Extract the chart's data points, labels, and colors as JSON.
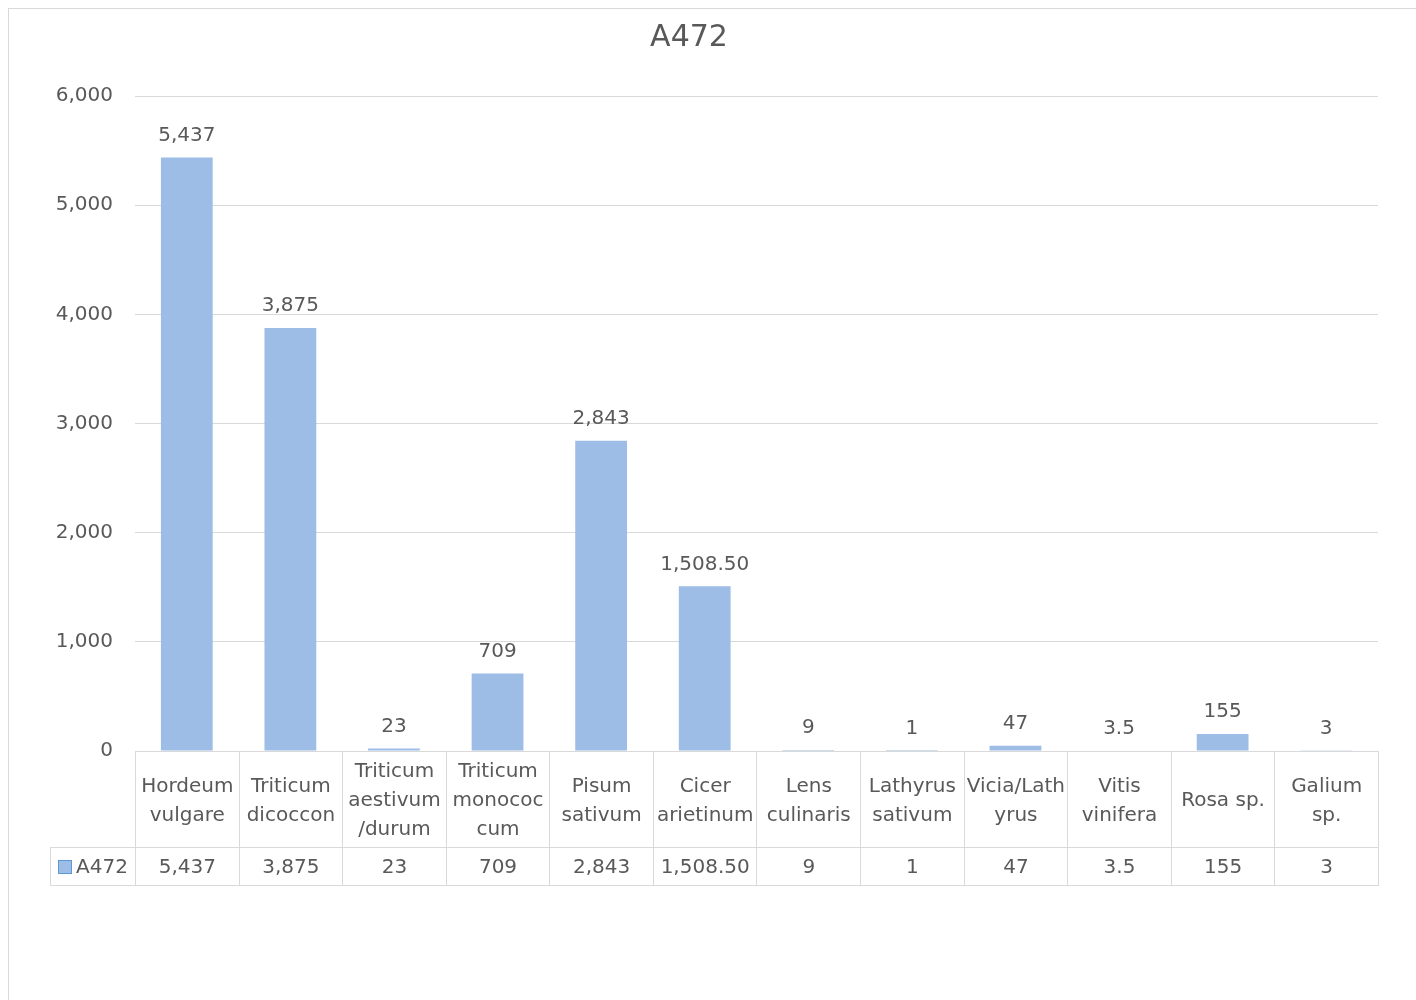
{
  "chart_data": {
    "type": "bar",
    "title": "A472",
    "categories": [
      "Hordeum vulgare",
      "Triticum dicoccon",
      "Triticum aestivum/durum",
      "Triticum monococcum",
      "Pisum sativum",
      "Cicer arietinum",
      "Lens culinaris",
      "Lathyrus sativum",
      "Vicia/Lathyrus",
      "Vitis vinifera",
      "Rosa sp.",
      "Galium sp."
    ],
    "series": [
      {
        "name": "A472",
        "color": "#9dbde6",
        "values": [
          5437,
          3875,
          23,
          709,
          2843,
          1508.5,
          9,
          1,
          47,
          3.5,
          155,
          3
        ],
        "value_labels": [
          "5,437",
          "3,875",
          "23",
          "709",
          "2,843",
          "1,508.50",
          "9",
          "1",
          "47",
          "3.5",
          "155",
          "3"
        ]
      }
    ],
    "ylim": [
      0,
      6000
    ],
    "yticks": [
      {
        "value": 0,
        "label": "0"
      },
      {
        "value": 1000,
        "label": "1,000"
      },
      {
        "value": 2000,
        "label": "2,000"
      },
      {
        "value": 3000,
        "label": "3,000"
      },
      {
        "value": 4000,
        "label": "4,000"
      },
      {
        "value": 5000,
        "label": "5,000"
      },
      {
        "value": 6000,
        "label": "6,000"
      }
    ],
    "grid": "y",
    "legend": "bottom"
  }
}
